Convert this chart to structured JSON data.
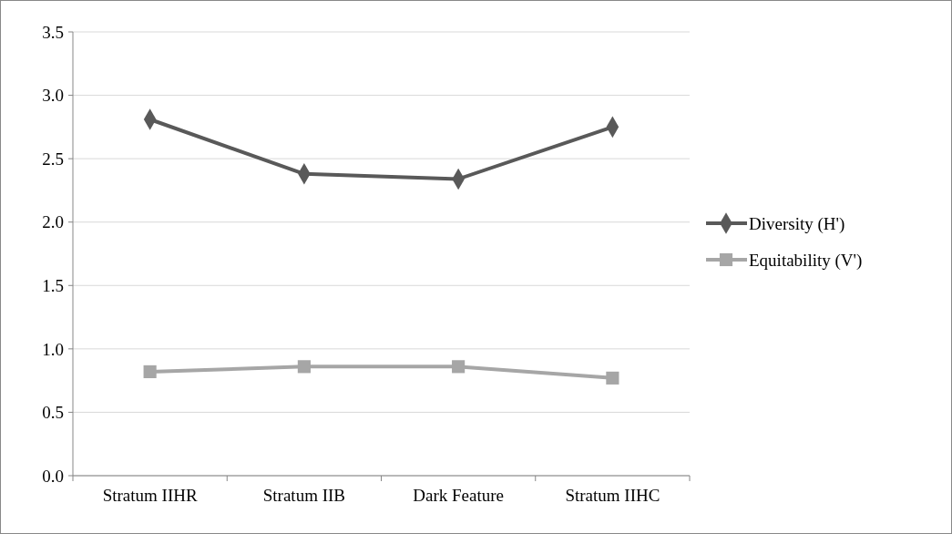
{
  "chart_data": {
    "type": "line",
    "categories": [
      "Stratum IIHR",
      "Stratum IIB",
      "Dark Feature",
      "Stratum IIHC"
    ],
    "series": [
      {
        "name": "Diversity (H')",
        "color": "#595959",
        "marker": "diamond",
        "values": [
          2.81,
          2.38,
          2.34,
          2.75
        ]
      },
      {
        "name": "Equitability (V')",
        "color": "#a6a6a6",
        "marker": "square",
        "values": [
          0.82,
          0.86,
          0.86,
          0.77
        ]
      }
    ],
    "ylim": [
      0,
      3.5
    ],
    "yticks": [
      {
        "value": 0,
        "label": "0.0"
      },
      {
        "value": 0.5,
        "label": "0.5"
      },
      {
        "value": 1,
        "label": "1.0"
      },
      {
        "value": 1.5,
        "label": "1.5"
      },
      {
        "value": 2,
        "label": "2.0"
      },
      {
        "value": 2.5,
        "label": "2.5"
      },
      {
        "value": 3,
        "label": "3.0"
      },
      {
        "value": 3.5,
        "label": "3.5"
      }
    ],
    "grid": "y",
    "legend": "right",
    "line_style": "solid"
  }
}
